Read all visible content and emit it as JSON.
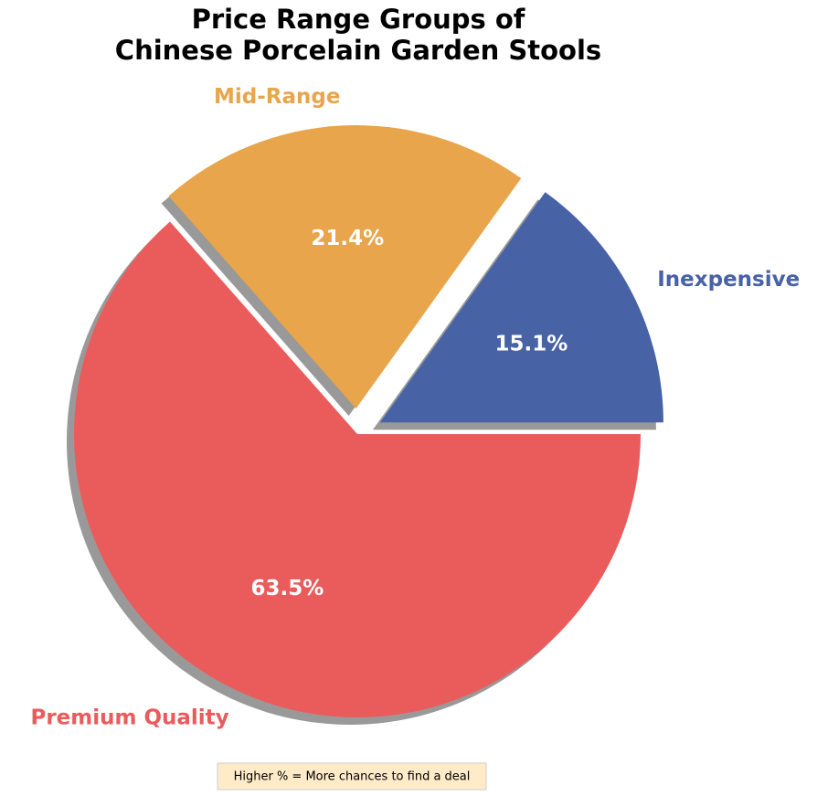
{
  "chart_data": {
    "type": "pie",
    "title": "Price Range Groups of\nChinese Porcelain Garden Stools",
    "categories": [
      "Inexpensive",
      "Mid-Range",
      "Premium Quality"
    ],
    "values": [
      15.1,
      21.4,
      63.5
    ],
    "value_labels": [
      "15.1%",
      "21.4%",
      "63.5%"
    ],
    "colors": [
      "#4762a5",
      "#e8a54b",
      "#ea5c5c"
    ],
    "shadow": true,
    "annotation": "Higher % = More chances to find a deal"
  }
}
